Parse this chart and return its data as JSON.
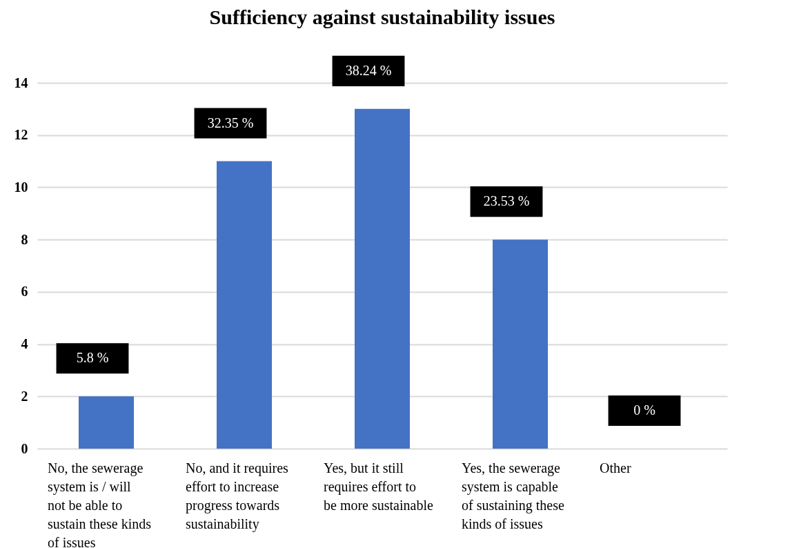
{
  "chart_data": {
    "type": "bar",
    "title": "Sufficiency against sustainability issues",
    "categories": [
      "No, the sewerage system is / will not be able to sustain these kinds of issues",
      "No, and it requires effort to increase progress towards sustainability",
      "Yes, but it still requires effort to be more sustainable",
      "Yes, the sewerage system is capable of sustaining these kinds of issues",
      "Other"
    ],
    "values": [
      2,
      11,
      13,
      8,
      0
    ],
    "annotations": [
      "5.8 %",
      "32.35 %",
      "38.24 %",
      "23.53 %",
      "0 %"
    ],
    "color": "#4472c4",
    "ylim": [
      0,
      14
    ],
    "yticks": [
      0,
      2,
      4,
      6,
      8,
      10,
      12,
      14
    ],
    "grid": "y"
  }
}
